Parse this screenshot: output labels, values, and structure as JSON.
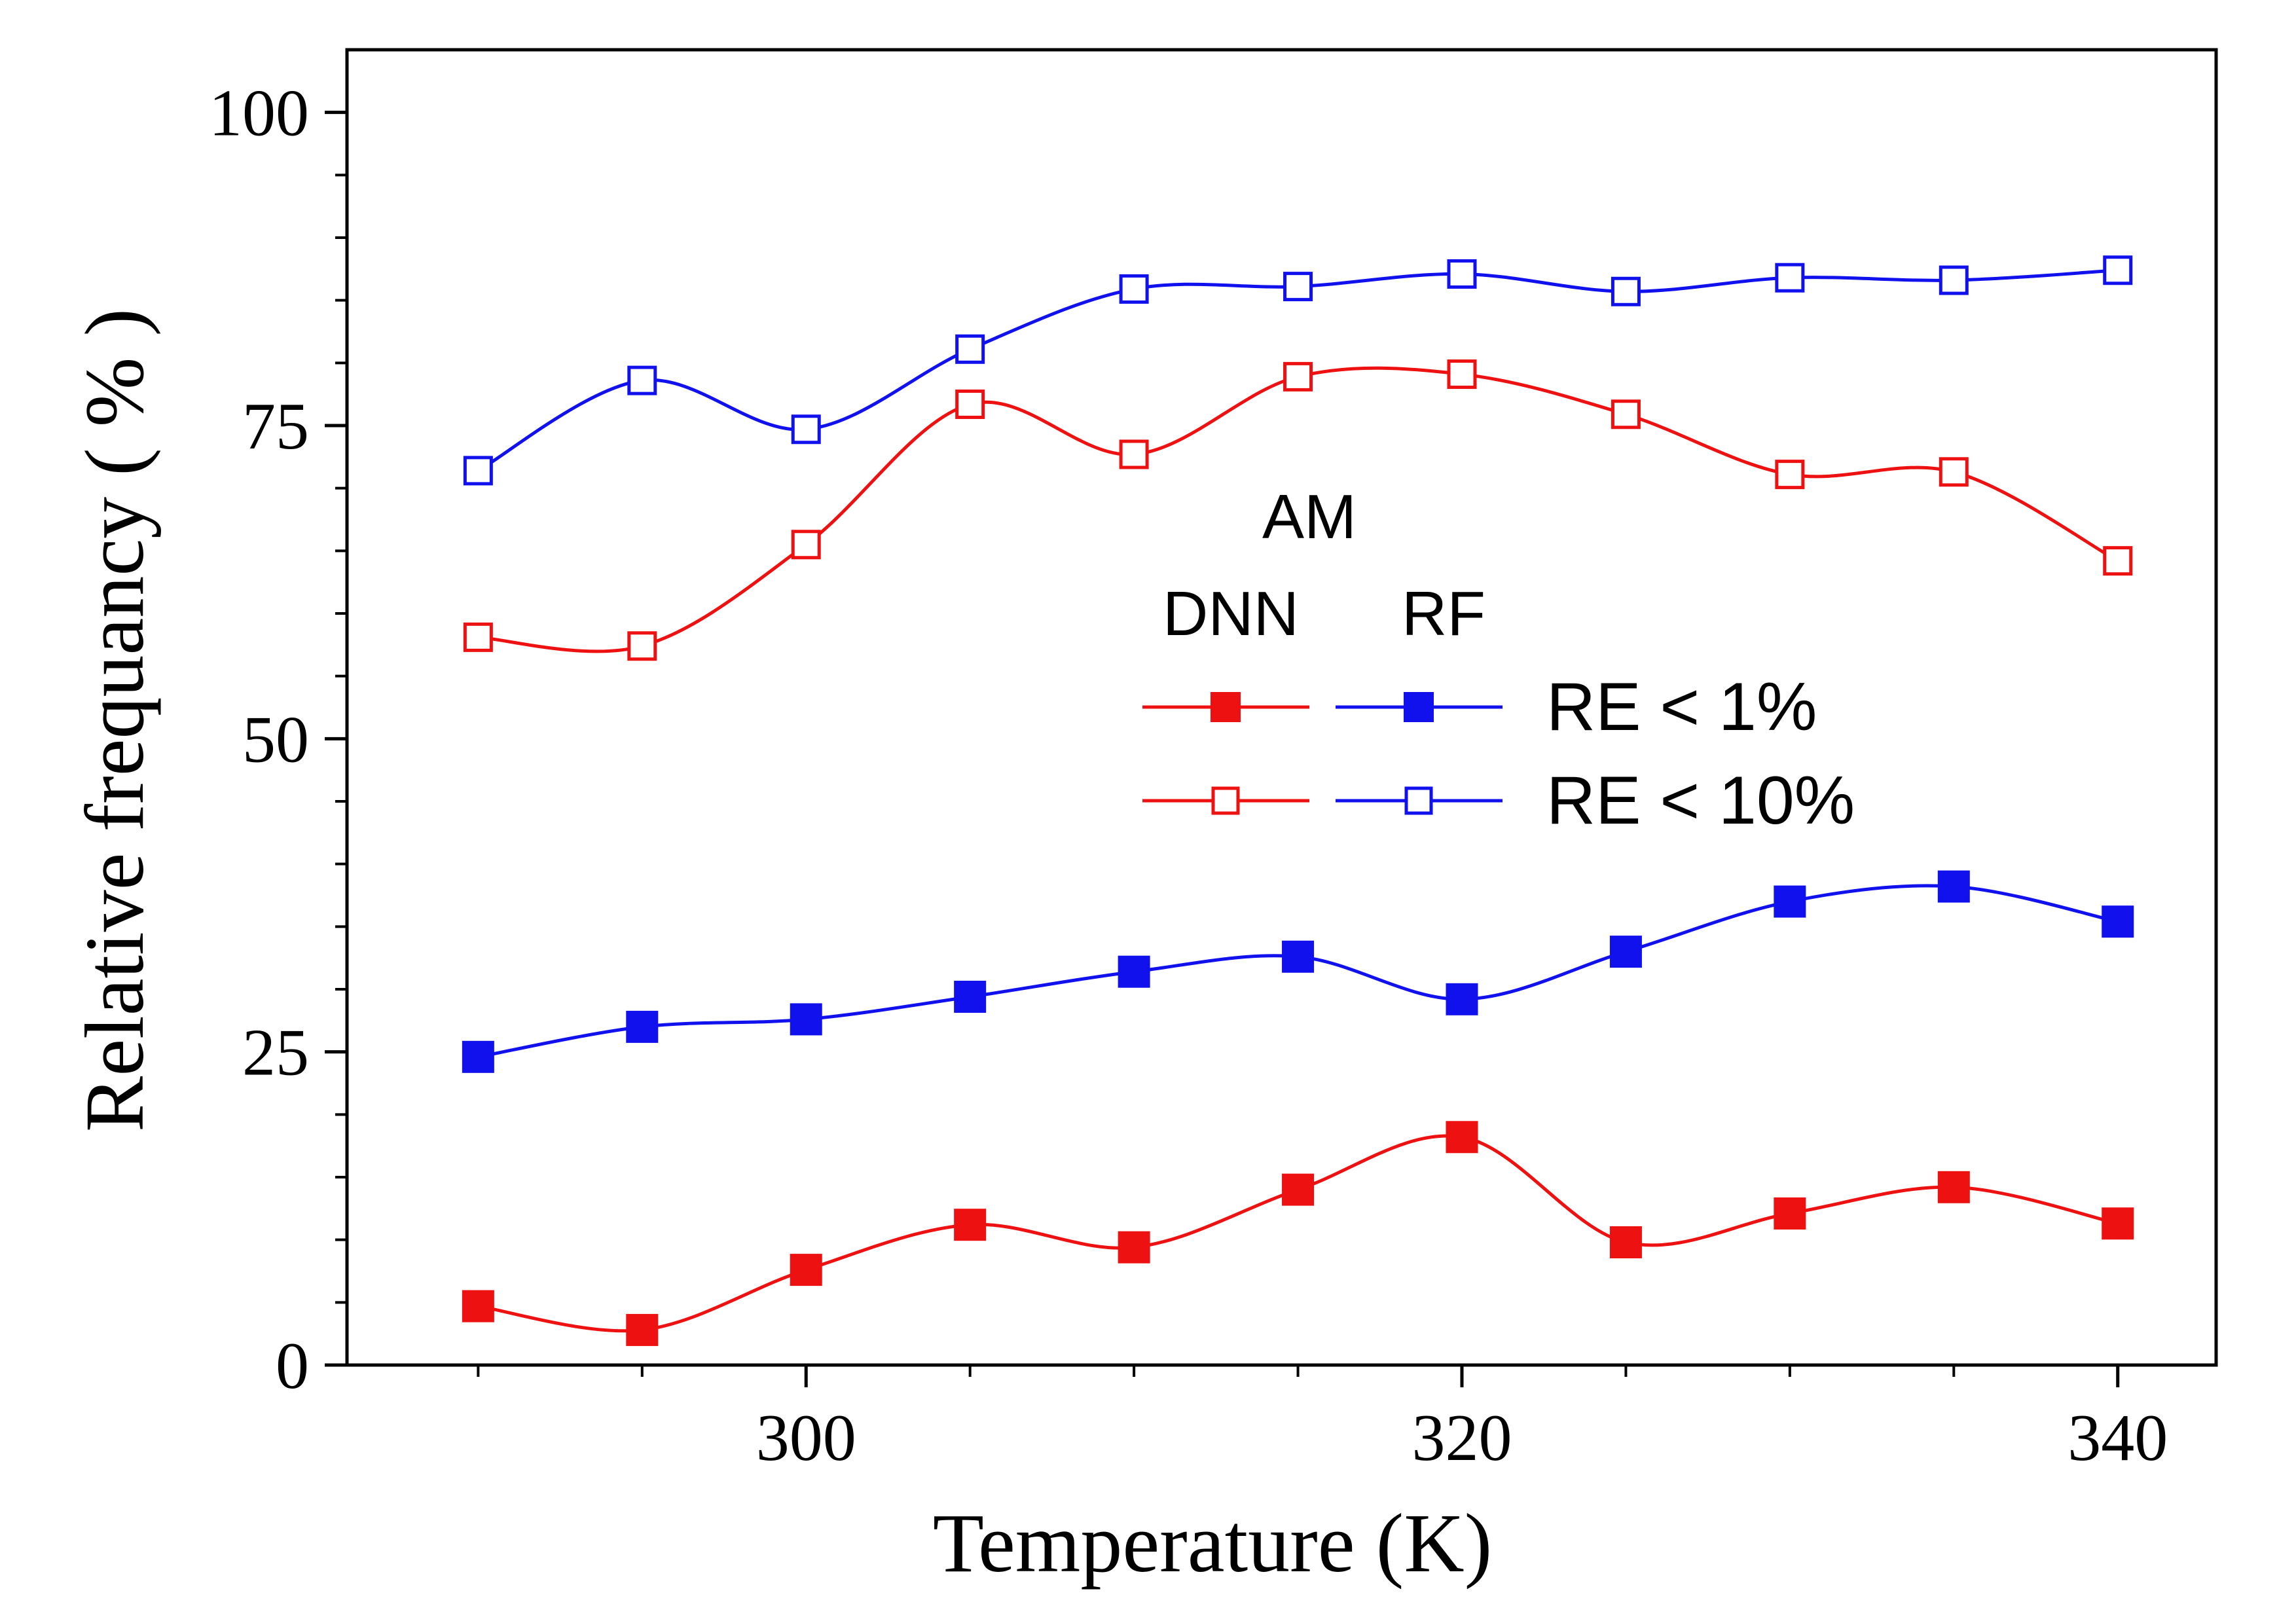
{
  "chart_data": {
    "type": "line",
    "xlabel": "Temperature (K)",
    "ylabel": "Relative frequancy ( % )",
    "xlim": [
      286,
      343
    ],
    "ylim": [
      0,
      105
    ],
    "x_ticks": [
      300,
      320,
      340
    ],
    "x_minor_ticks": [
      290,
      295,
      305,
      310,
      315,
      325,
      330,
      335
    ],
    "y_ticks": [
      0,
      25,
      50,
      75,
      100
    ],
    "y_minor_step": 5,
    "grid": false,
    "legend": {
      "placement": "center-right",
      "header": "AM",
      "group_labels": [
        "DNN",
        "RF"
      ],
      "row_labels": [
        "RE < 1%",
        "RE < 10%"
      ],
      "colors": [
        "#ee1111",
        "#1111ee"
      ]
    },
    "x": [
      290,
      295,
      300,
      305,
      310,
      315,
      320,
      325,
      330,
      335,
      340
    ],
    "series": [
      {
        "name": "DNN, RE < 1%",
        "group": "DNN",
        "criterion": "RE < 1%",
        "color": "#ee1111",
        "marker": "filled-square",
        "values": [
          4.7,
          2.8,
          7.6,
          11.2,
          9.4,
          14.0,
          18.2,
          9.8,
          12.1,
          14.2,
          11.3
        ]
      },
      {
        "name": "RF, RE < 1%",
        "group": "RF",
        "criterion": "RE < 1%",
        "color": "#1111ee",
        "marker": "filled-square",
        "values": [
          24.6,
          27.0,
          27.6,
          29.4,
          31.4,
          32.6,
          29.2,
          33.0,
          37.0,
          38.2,
          35.4
        ]
      },
      {
        "name": "DNN, RE < 10%",
        "group": "DNN",
        "criterion": "RE < 10%",
        "color": "#ee1111",
        "marker": "open-square",
        "values": [
          58.1,
          57.4,
          65.5,
          76.7,
          72.7,
          78.9,
          79.1,
          75.9,
          71.1,
          71.3,
          64.2
        ]
      },
      {
        "name": "RF, RE < 10%",
        "group": "RF",
        "criterion": "RE < 10%",
        "color": "#1111ee",
        "marker": "open-square",
        "values": [
          71.4,
          78.6,
          74.7,
          81.1,
          85.9,
          86.1,
          87.1,
          85.7,
          86.8,
          86.6,
          87.4
        ]
      }
    ]
  }
}
